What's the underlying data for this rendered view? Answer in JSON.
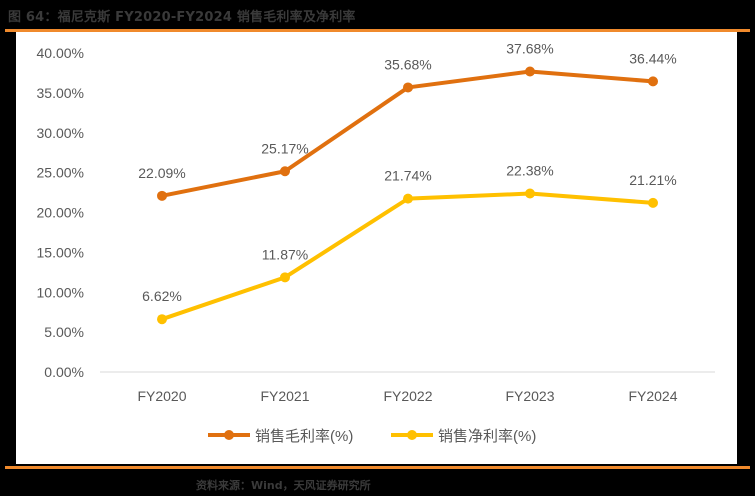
{
  "title": "图 64：福尼克斯 FY2020-FY2024 销售毛利率及净利率",
  "source": "资料来源：Wind，天风证券研究所",
  "colors": {
    "rule": "#f08a2c",
    "gross": "#e0700f",
    "net": "#ffc000",
    "text": "#595959",
    "grid": "#d9d9d9"
  },
  "chart_data": {
    "type": "line",
    "title": "福尼克斯 FY2020-FY2024 销售毛利率及净利率",
    "categories": [
      "FY2020",
      "FY2021",
      "FY2022",
      "FY2023",
      "FY2024"
    ],
    "series": [
      {
        "name": "销售毛利率(%)",
        "values": [
          22.09,
          25.17,
          35.68,
          37.68,
          36.44
        ],
        "labels": [
          "22.09%",
          "25.17%",
          "35.68%",
          "37.68%",
          "36.44%"
        ],
        "color": "#e0700f"
      },
      {
        "name": "销售净利率(%)",
        "values": [
          6.62,
          11.87,
          21.74,
          22.38,
          21.21
        ],
        "labels": [
          "6.62%",
          "11.87%",
          "21.74%",
          "22.38%",
          "21.21%"
        ],
        "color": "#ffc000"
      }
    ],
    "yticks": [
      "0.00%",
      "5.00%",
      "10.00%",
      "15.00%",
      "20.00%",
      "25.00%",
      "30.00%",
      "35.00%",
      "40.00%"
    ],
    "ylim": [
      0,
      40
    ],
    "xlabel": "",
    "ylabel": "",
    "grid": false,
    "legend_position": "bottom"
  }
}
